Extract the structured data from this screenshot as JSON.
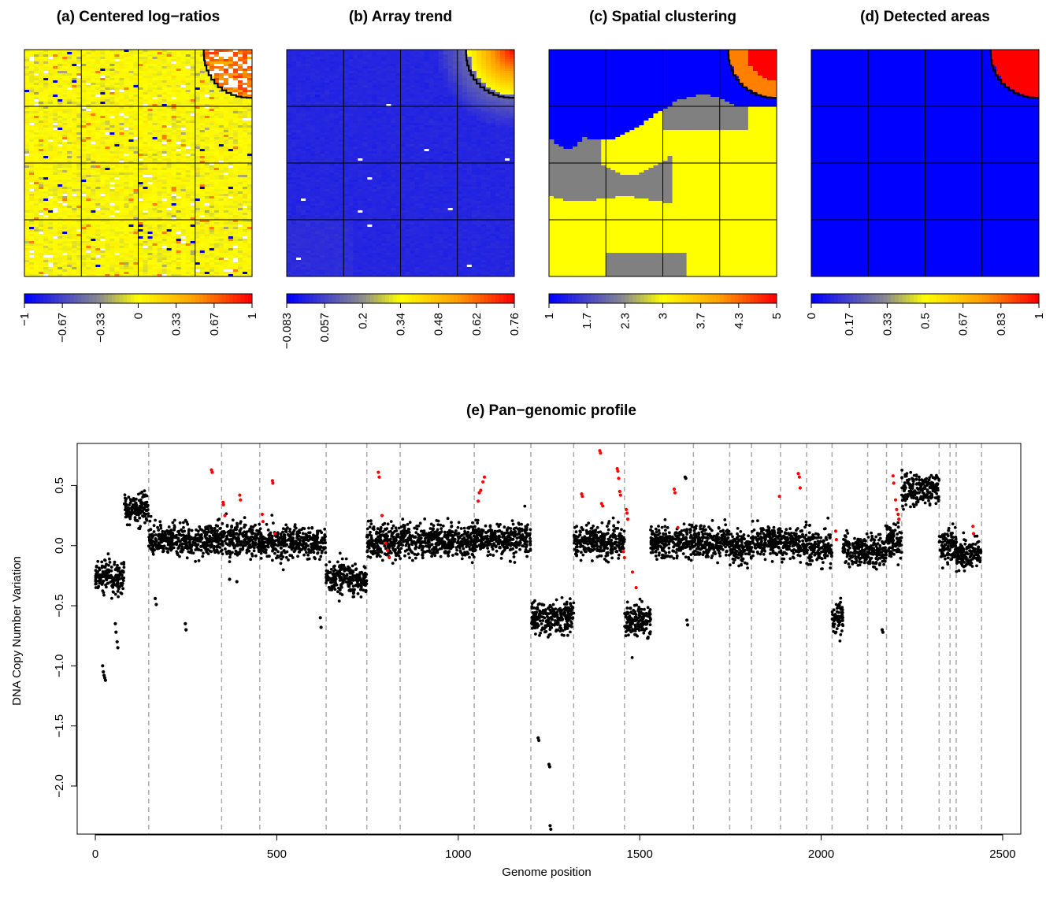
{
  "figure": {
    "title_e": "(e) Pan−genomic profile"
  },
  "chart_data": [
    {
      "type": "heatmap",
      "title": "(a) Centered log−ratios",
      "description_of_content": "array image of centered log-ratios; mostly values near 0 (yellow) with scattered extreme spots; high values (orange/red) in top-right corner, outlined by a black staircase border",
      "colorbar": {
        "min": -1,
        "max": 1,
        "ticks": [
          "−1",
          "−0.67",
          "−0.33",
          "0",
          "0.33",
          "0.67",
          "1"
        ]
      },
      "grid": "4x4 blocks",
      "corner_region": "top-right"
    },
    {
      "type": "heatmap",
      "title": "(b) Array trend",
      "colorbar": {
        "min": -0.083,
        "max": 0.76,
        "ticks": [
          "−0.083",
          "0.057",
          "0.2",
          "0.34",
          "0.48",
          "0.62",
          "0.76"
        ]
      },
      "grid": "4x4 blocks",
      "corner_region": "top-right"
    },
    {
      "type": "heatmap",
      "title": "(c) Spatial clustering",
      "colorbar": {
        "min": 1,
        "max": 5,
        "ticks": [
          "1",
          "1.7",
          "2.3",
          "3",
          "3.7",
          "4.3",
          "5"
        ]
      },
      "grid": "4x4 blocks",
      "clusters": [
        {
          "level": 1,
          "color": "#0000ff",
          "area": "upper-left"
        },
        {
          "level": 2,
          "color": "#808080",
          "area": "band through middle and bottom"
        },
        {
          "level": 3,
          "color": "#ffff00",
          "area": "lower and right"
        },
        {
          "level": 4,
          "color": "#ff8000",
          "area": "top-right corner"
        },
        {
          "level": 5,
          "color": "#ff0000",
          "area": "top-right corner"
        }
      ]
    },
    {
      "type": "heatmap",
      "title": "(d) Detected areas",
      "colorbar": {
        "min": 0,
        "max": 1,
        "ticks": [
          "0",
          "0.17",
          "0.33",
          "0.5",
          "0.67",
          "0.83",
          "1"
        ]
      },
      "grid": "4x4 blocks",
      "detected": {
        "value": 1,
        "area": "top-right corner"
      }
    },
    {
      "type": "scatter",
      "title": "(e) Pan−genomic profile",
      "xlabel": "Genome position",
      "ylabel": "DNA Copy Number Variation",
      "xlim": [
        -50,
        2550
      ],
      "ylim": [
        -2.4,
        0.85
      ],
      "xticks": [
        0,
        500,
        1000,
        1500,
        2000,
        2500
      ],
      "yticks": [
        -2.0,
        -1.5,
        -1.0,
        -0.5,
        0.0,
        0.5
      ],
      "xtick_labels": [
        "0",
        "500",
        "1000",
        "1500",
        "2000",
        "2500"
      ],
      "ytick_labels": [
        "−2.0",
        "−1.5",
        "−1.0",
        "−0.5",
        "0.0",
        "0.5"
      ],
      "chromosome_boundaries": [
        147,
        348,
        453,
        636,
        748,
        840,
        1044,
        1200,
        1318,
        1458,
        1648,
        1748,
        1808,
        1888,
        1960,
        2030,
        2128,
        2180,
        2222,
        2325,
        2355,
        2372,
        2442
      ],
      "segments": [
        {
          "start": 0,
          "end": 30,
          "level": -0.26
        },
        {
          "start": 30,
          "end": 45,
          "level": -0.25
        },
        {
          "start": 45,
          "end": 80,
          "level": -0.27
        },
        {
          "start": 80,
          "end": 147,
          "level": 0.3
        },
        {
          "start": 147,
          "end": 348,
          "level": 0.05
        },
        {
          "start": 348,
          "end": 453,
          "level": 0.05
        },
        {
          "start": 453,
          "end": 636,
          "level": 0.02
        },
        {
          "start": 636,
          "end": 748,
          "level": -0.27
        },
        {
          "start": 748,
          "end": 840,
          "level": 0.03
        },
        {
          "start": 840,
          "end": 1044,
          "level": 0.04
        },
        {
          "start": 1044,
          "end": 1200,
          "level": 0.05
        },
        {
          "start": 1200,
          "end": 1318,
          "level": -0.6
        },
        {
          "start": 1318,
          "end": 1458,
          "level": 0.04
        },
        {
          "start": 1458,
          "end": 1530,
          "level": -0.62
        },
        {
          "start": 1530,
          "end": 1648,
          "level": 0.03
        },
        {
          "start": 1648,
          "end": 1748,
          "level": 0.03
        },
        {
          "start": 1748,
          "end": 1808,
          "level": -0.02
        },
        {
          "start": 1808,
          "end": 1888,
          "level": 0.04
        },
        {
          "start": 1888,
          "end": 1960,
          "level": 0.02
        },
        {
          "start": 1960,
          "end": 2030,
          "level": -0.02
        },
        {
          "start": 2030,
          "end": 2060,
          "level": -0.6
        },
        {
          "start": 2060,
          "end": 2128,
          "level": -0.03
        },
        {
          "start": 2128,
          "end": 2180,
          "level": -0.05
        },
        {
          "start": 2180,
          "end": 2222,
          "level": 0.04
        },
        {
          "start": 2222,
          "end": 2325,
          "level": 0.47
        },
        {
          "start": 2325,
          "end": 2372,
          "level": 0.0
        },
        {
          "start": 2372,
          "end": 2442,
          "level": -0.07
        }
      ],
      "outliers_black": [
        [
          20,
          -1.0
        ],
        [
          22,
          -1.05
        ],
        [
          24,
          -1.08
        ],
        [
          26,
          -1.1
        ],
        [
          28,
          -1.12
        ],
        [
          55,
          -0.65
        ],
        [
          57,
          -0.72
        ],
        [
          60,
          -0.8
        ],
        [
          62,
          -0.85
        ],
        [
          165,
          -0.44
        ],
        [
          168,
          -0.49
        ],
        [
          248,
          -0.65
        ],
        [
          250,
          -0.7
        ],
        [
          620,
          -0.6
        ],
        [
          622,
          -0.68
        ],
        [
          1220,
          -1.6
        ],
        [
          1222,
          -1.62
        ],
        [
          1250,
          -1.82
        ],
        [
          1252,
          -1.84
        ],
        [
          1253,
          -2.33
        ],
        [
          1255,
          -2.36
        ],
        [
          1625,
          0.57
        ],
        [
          1627,
          0.56
        ],
        [
          1630,
          -0.62
        ],
        [
          1632,
          -0.66
        ],
        [
          2168,
          -0.7
        ],
        [
          2170,
          -0.72
        ],
        [
          370,
          -0.28
        ],
        [
          390,
          -0.3
        ]
      ],
      "outliers_red": [
        [
          320,
          0.63
        ],
        [
          322,
          0.61
        ],
        [
          352,
          0.36
        ],
        [
          353,
          0.34
        ],
        [
          357,
          0.25
        ],
        [
          398,
          0.42
        ],
        [
          400,
          0.38
        ],
        [
          460,
          0.26
        ],
        [
          462,
          0.2
        ],
        [
          488,
          0.54
        ],
        [
          489,
          0.52
        ],
        [
          495,
          0.1
        ],
        [
          780,
          0.61
        ],
        [
          782,
          0.57
        ],
        [
          790,
          0.25
        ],
        [
          800,
          0.02
        ],
        [
          805,
          -0.04
        ],
        [
          810,
          -0.1
        ],
        [
          1055,
          0.37
        ],
        [
          1058,
          0.44
        ],
        [
          1062,
          0.46
        ],
        [
          1068,
          0.53
        ],
        [
          1072,
          0.57
        ],
        [
          1340,
          0.43
        ],
        [
          1342,
          0.41
        ],
        [
          1390,
          0.79
        ],
        [
          1392,
          0.77
        ],
        [
          1395,
          0.35
        ],
        [
          1398,
          0.33
        ],
        [
          1438,
          0.64
        ],
        [
          1440,
          0.62
        ],
        [
          1442,
          0.56
        ],
        [
          1445,
          0.45
        ],
        [
          1447,
          0.42
        ],
        [
          1455,
          -0.05
        ],
        [
          1458,
          -0.1
        ],
        [
          1463,
          0.3
        ],
        [
          1465,
          0.27
        ],
        [
          1467,
          0.22
        ],
        [
          1480,
          -0.22
        ],
        [
          1490,
          -0.35
        ],
        [
          1595,
          0.47
        ],
        [
          1597,
          0.44
        ],
        [
          1605,
          0.15
        ],
        [
          1885,
          0.41
        ],
        [
          1937,
          0.6
        ],
        [
          1940,
          0.57
        ],
        [
          1942,
          0.48
        ],
        [
          2040,
          0.12
        ],
        [
          2042,
          0.05
        ],
        [
          2198,
          0.58
        ],
        [
          2200,
          0.52
        ],
        [
          2205,
          0.38
        ],
        [
          2208,
          0.3
        ],
        [
          2212,
          0.26
        ],
        [
          2214,
          0.22
        ],
        [
          2418,
          0.16
        ],
        [
          2420,
          0.1
        ]
      ]
    }
  ]
}
